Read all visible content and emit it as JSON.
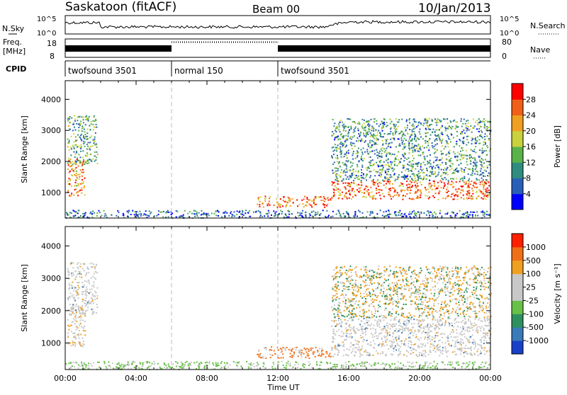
{
  "header": {
    "station": "Saskatoon (fitACF)",
    "beam": "Beam 00",
    "date": "10/Jan/2013"
  },
  "top_panel": {
    "nsky_label": "N.Sky",
    "nsky_ticks": [
      "10^5",
      "10^0"
    ],
    "nsearch_label": "N.Search",
    "nsearch_ticks": [
      "10^5",
      "10^0"
    ],
    "freq_label_line1": "Freq.",
    "freq_label_line2": "[MHz]",
    "freq_ticks": [
      "18",
      "8"
    ],
    "nave_label": "Nave",
    "nave_ticks": [
      "80",
      "0"
    ],
    "cpid_label": "CPID",
    "cpid_segments": [
      {
        "label": "twofsound 3501",
        "start": 0,
        "end": 6
      },
      {
        "label": "normal 150",
        "start": 6,
        "end": 12
      },
      {
        "label": "twofsound 3501",
        "start": 12,
        "end": 24
      }
    ]
  },
  "chart_data": [
    {
      "type": "heatmap",
      "name": "power",
      "xlabel": "",
      "ylabel": "Slant Range [km]",
      "xlim": [
        0,
        24
      ],
      "ylim": [
        180,
        4600
      ],
      "yticks": [
        "1000",
        "2000",
        "3000",
        "4000"
      ],
      "colorbar_label": "Power [dB]",
      "colorbar_ticks": [
        "28",
        "24",
        "20",
        "16",
        "12",
        "8",
        "4"
      ],
      "colorbar_colors": [
        "#0000ff",
        "#2a5fb8",
        "#2f8c7e",
        "#5ab24a",
        "#c8d23c",
        "#f0a020",
        "#f06018",
        "#ff0000"
      ],
      "regions": [
        {
          "x": [
            0.1,
            1.1
          ],
          "y": [
            900,
            2100
          ],
          "level": 0.85
        },
        {
          "x": [
            0.1,
            1.8
          ],
          "y": [
            1900,
            3500
          ],
          "level": 0.45
        },
        {
          "x": [
            10.8,
            15.0
          ],
          "y": [
            550,
            900
          ],
          "level": 0.9
        },
        {
          "x": [
            15.0,
            24.0
          ],
          "y": [
            800,
            1400
          ],
          "level": 0.9
        },
        {
          "x": [
            15.0,
            24.0
          ],
          "y": [
            1400,
            3400
          ],
          "level": 0.4
        },
        {
          "x": [
            0.0,
            24.0
          ],
          "y": [
            200,
            450
          ],
          "level": 0.25
        }
      ]
    },
    {
      "type": "heatmap",
      "name": "velocity",
      "xlabel": "Time UT",
      "ylabel": "Slant Range [km]",
      "xlim": [
        0,
        24
      ],
      "ylim": [
        180,
        4600
      ],
      "xticks": [
        "00:00",
        "04:00",
        "08:00",
        "12:00",
        "16:00",
        "20:00",
        "00:00"
      ],
      "yticks": [
        "1000",
        "2000",
        "3000",
        "4000"
      ],
      "colorbar_label": "Velocity [m s⁻¹]",
      "colorbar_ticks": [
        "1000",
        "500",
        "100",
        "25",
        "-25",
        "-100",
        "-500",
        "-1000"
      ],
      "colorbar_colors": [
        "#1840c8",
        "#3a7ab8",
        "#2e9060",
        "#68c048",
        "#c8c8c8",
        "#c8c8c8",
        "#f0a020",
        "#f07018",
        "#ff2000"
      ],
      "regions": [
        {
          "x": [
            0.1,
            1.1
          ],
          "y": [
            900,
            2100
          ],
          "level": "grey-orange"
        },
        {
          "x": [
            0.1,
            1.8
          ],
          "y": [
            1900,
            3500
          ],
          "level": "grey"
        },
        {
          "x": [
            10.8,
            15.0
          ],
          "y": [
            550,
            900
          ],
          "level": "orange"
        },
        {
          "x": [
            15.0,
            24.0
          ],
          "y": [
            600,
            1800
          ],
          "level": "grey"
        },
        {
          "x": [
            15.0,
            24.0
          ],
          "y": [
            1800,
            3400
          ],
          "level": "orange-green"
        },
        {
          "x": [
            0.0,
            24.0
          ],
          "y": [
            200,
            450
          ],
          "level": "green"
        }
      ]
    }
  ]
}
